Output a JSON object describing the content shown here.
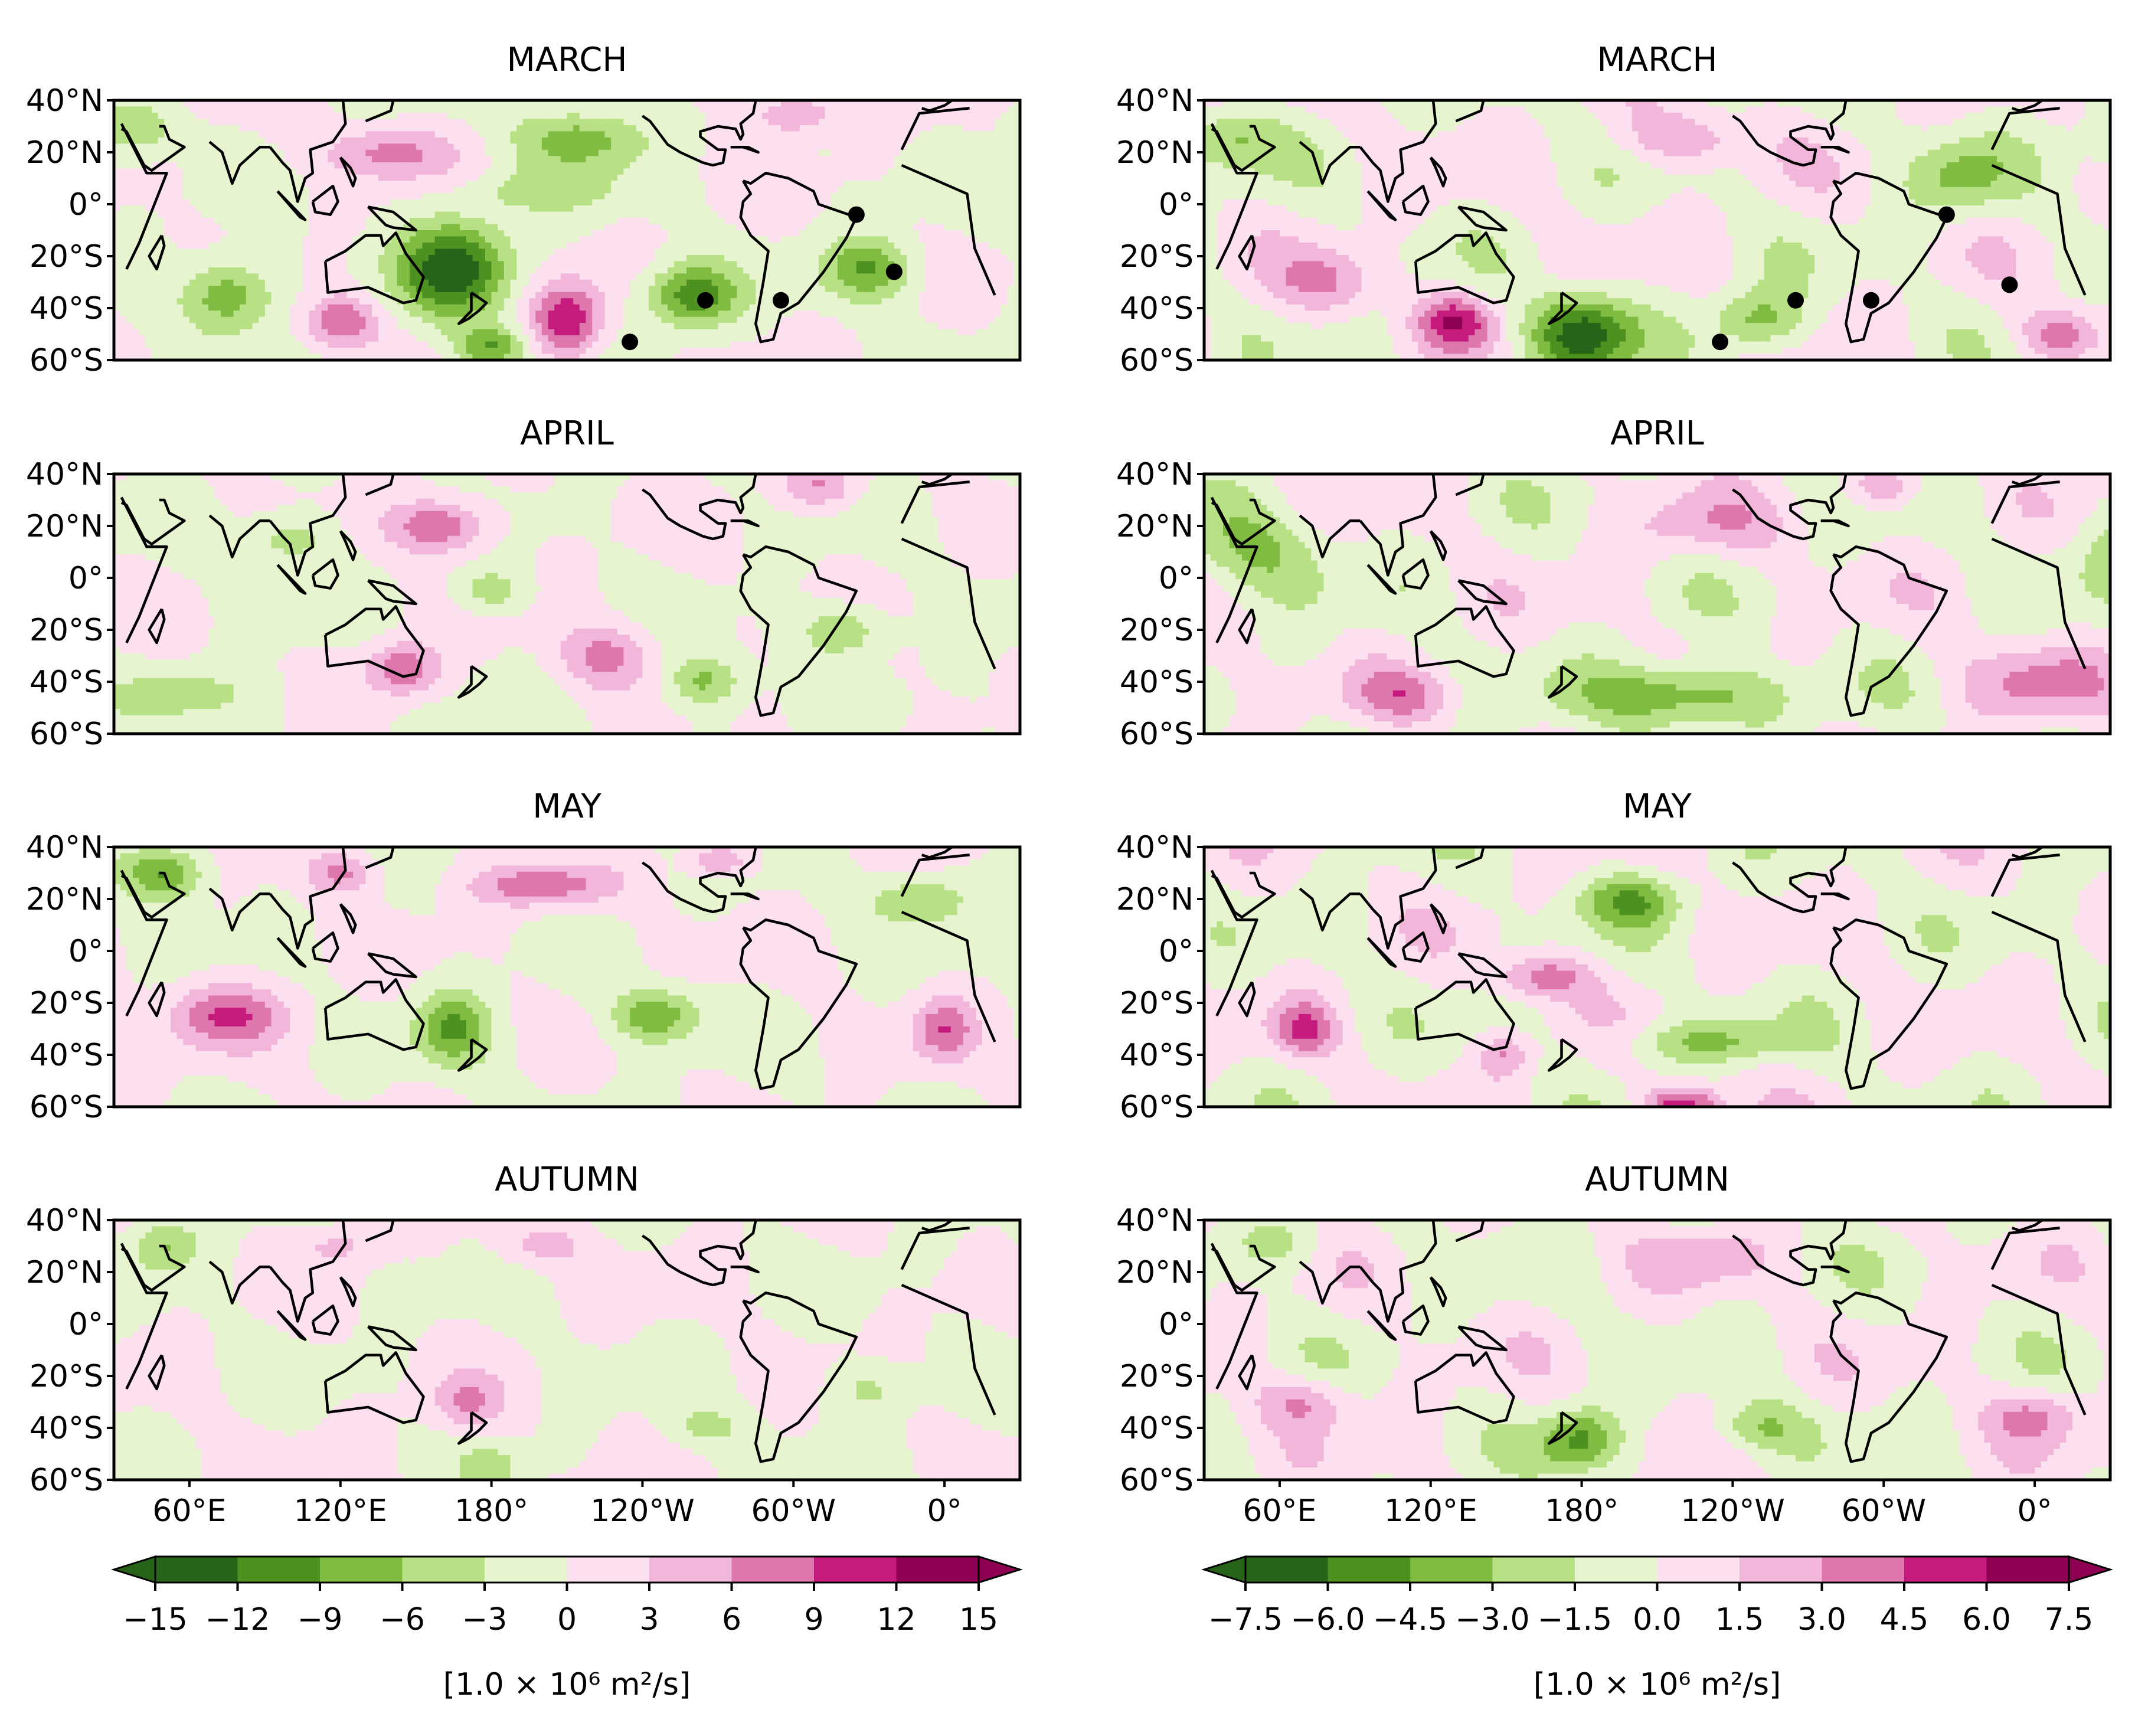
{
  "chart_data": {
    "type": "heatmap",
    "layout": "4 rows x 2 columns of global contour maps (longitude 30°E to 30°E, latitude 60°S to 40°N)",
    "row_titles": [
      "MARCH",
      "APRIL",
      "MAY",
      "AUTUMN"
    ],
    "lat_ticks": [
      "40°N",
      "20°N",
      "0°",
      "20°S",
      "40°S",
      "60°S"
    ],
    "lon_ticks": [
      "60°E",
      "120°E",
      "180°",
      "120°W",
      "60°W",
      "0°"
    ],
    "lat_range": [
      -60,
      40
    ],
    "lon_range_deg_east": [
      30,
      390
    ],
    "colormap": {
      "name": "PiYG",
      "colors": [
        "#276419",
        "#4d9221",
        "#7fbc41",
        "#b8e186",
        "#e6f5d0",
        "#fde0ef",
        "#f1b6da",
        "#de77ae",
        "#c51b7d",
        "#8e0152"
      ]
    },
    "colorbars": [
      {
        "levels": [
          -15,
          -12,
          -9,
          -6,
          -3,
          0,
          3,
          6,
          9,
          12,
          15
        ],
        "tick_labels": [
          "−15",
          "−12",
          "−9",
          "−6",
          "−3",
          "0",
          "3",
          "6",
          "9",
          "12",
          "15"
        ],
        "units": "[1.0 × 10⁶ m²/s]"
      },
      {
        "levels": [
          -7.5,
          -6.0,
          -4.5,
          -3.0,
          -1.5,
          0.0,
          1.5,
          3.0,
          4.5,
          6.0,
          7.5
        ],
        "tick_labels": [
          "−7.5",
          "−6.0",
          "−4.5",
          "−3.0",
          "−1.5",
          "0.0",
          "1.5",
          "3.0",
          "4.5",
          "6.0",
          "7.5"
        ],
        "units": "[1.0 × 10⁶ m²/s]"
      }
    ],
    "panels": [
      {
        "col": 0,
        "row": 0,
        "title": "MARCH",
        "vmax": 15,
        "blobs": [
          {
            "lon": 165,
            "lat": -25,
            "value": -14,
            "rlon": 22,
            "rlat": 18
          },
          {
            "lon": 140,
            "lat": 20,
            "value": 7,
            "rlon": 25,
            "rlat": 10
          },
          {
            "lon": 215,
            "lat": 25,
            "value": -8,
            "rlon": 25,
            "rlat": 12
          },
          {
            "lon": 210,
            "lat": -45,
            "value": 12,
            "rlon": 14,
            "rlat": 14
          },
          {
            "lon": 260,
            "lat": -35,
            "value": -11,
            "rlon": 18,
            "rlat": 12
          },
          {
            "lon": 330,
            "lat": -25,
            "value": -9,
            "rlon": 18,
            "rlat": 12
          },
          {
            "lon": 75,
            "lat": -35,
            "value": -9,
            "rlon": 18,
            "rlat": 14
          },
          {
            "lon": 120,
            "lat": -45,
            "value": 9,
            "rlon": 14,
            "rlat": 10
          },
          {
            "lon": 180,
            "lat": -55,
            "value": -9,
            "rlon": 14,
            "rlat": 8
          },
          {
            "lon": 300,
            "lat": 35,
            "value": 7,
            "rlon": 16,
            "rlat": 8
          },
          {
            "lon": 40,
            "lat": 30,
            "value": -6,
            "rlon": 14,
            "rlat": 10
          },
          {
            "lon": 200,
            "lat": 5,
            "value": -4,
            "rlon": 30,
            "rlat": 8
          }
        ],
        "stipple_points": [
          {
            "lon": 325,
            "lat": -4
          },
          {
            "lon": 340,
            "lat": -26
          },
          {
            "lon": 265,
            "lat": -37
          },
          {
            "lon": 295,
            "lat": -37
          },
          {
            "lon": 235,
            "lat": -53
          }
        ]
      },
      {
        "col": 1,
        "row": 0,
        "title": "MARCH",
        "vmax": 7.5,
        "blobs": [
          {
            "lon": 180,
            "lat": -50,
            "value": -7,
            "rlon": 20,
            "rlat": 15
          },
          {
            "lon": 130,
            "lat": -45,
            "value": 5,
            "rlon": 15,
            "rlat": 10
          },
          {
            "lon": 250,
            "lat": -45,
            "value": -4,
            "rlon": 18,
            "rlat": 12
          },
          {
            "lon": 220,
            "lat": 25,
            "value": 3,
            "rlon": 25,
            "rlat": 10
          },
          {
            "lon": 80,
            "lat": -30,
            "value": 3,
            "rlon": 20,
            "rlat": 12
          },
          {
            "lon": 40,
            "lat": 25,
            "value": -3,
            "rlon": 20,
            "rlat": 12
          },
          {
            "lon": 370,
            "lat": -50,
            "value": 4,
            "rlon": 16,
            "rlat": 10
          },
          {
            "lon": 330,
            "lat": 10,
            "value": -3,
            "rlon": 20,
            "rlat": 15
          }
        ],
        "stipple_points": [
          {
            "lon": 325,
            "lat": -4
          },
          {
            "lon": 350,
            "lat": -31
          },
          {
            "lon": 265,
            "lat": -37
          },
          {
            "lon": 295,
            "lat": -37
          },
          {
            "lon": 235,
            "lat": -53
          }
        ]
      },
      {
        "col": 0,
        "row": 1,
        "title": "APRIL",
        "vmax": 15,
        "blobs": [
          {
            "lon": 160,
            "lat": 20,
            "value": 9,
            "rlon": 20,
            "rlat": 10
          },
          {
            "lon": 145,
            "lat": -35,
            "value": 9,
            "rlon": 14,
            "rlat": 10
          },
          {
            "lon": 225,
            "lat": -30,
            "value": 7,
            "rlon": 18,
            "rlat": 12
          },
          {
            "lon": 265,
            "lat": -40,
            "value": -7,
            "rlon": 15,
            "rlat": 10
          },
          {
            "lon": 320,
            "lat": -20,
            "value": -6,
            "rlon": 18,
            "rlat": 10
          },
          {
            "lon": 100,
            "lat": 15,
            "value": -5,
            "rlon": 18,
            "rlat": 10
          },
          {
            "lon": 310,
            "lat": 35,
            "value": 6,
            "rlon": 15,
            "rlat": 8
          },
          {
            "lon": 180,
            "lat": -5,
            "value": -5,
            "rlon": 14,
            "rlat": 8
          },
          {
            "lon": 60,
            "lat": -45,
            "value": -4,
            "rlon": 30,
            "rlat": 10
          }
        ],
        "stipple_points": []
      },
      {
        "col": 1,
        "row": 1,
        "title": "APRIL",
        "vmax": 7.5,
        "blobs": [
          {
            "lon": 220,
            "lat": -45,
            "value": -5,
            "rlon": 40,
            "rlat": 12
          },
          {
            "lon": 230,
            "lat": 20,
            "value": 2,
            "rlon": 35,
            "rlat": 12
          },
          {
            "lon": 110,
            "lat": -45,
            "value": 3,
            "rlon": 20,
            "rlat": 10
          },
          {
            "lon": 360,
            "lat": -40,
            "value": 3,
            "rlon": 30,
            "rlat": 14
          },
          {
            "lon": 50,
            "lat": 10,
            "value": -3,
            "rlon": 30,
            "rlat": 18
          },
          {
            "lon": 300,
            "lat": 35,
            "value": 3,
            "rlon": 15,
            "rlat": 8
          }
        ],
        "stipple_points": []
      },
      {
        "col": 0,
        "row": 2,
        "title": "MAY",
        "vmax": 15,
        "blobs": [
          {
            "lon": 50,
            "lat": 30,
            "value": -10,
            "rlon": 16,
            "rlat": 10
          },
          {
            "lon": 75,
            "lat": -25,
            "value": 9,
            "rlon": 22,
            "rlat": 12
          },
          {
            "lon": 165,
            "lat": -30,
            "value": -9,
            "rlon": 15,
            "rlat": 14
          },
          {
            "lon": 245,
            "lat": -25,
            "value": -9,
            "rlon": 16,
            "rlat": 10
          },
          {
            "lon": 200,
            "lat": 25,
            "value": 8,
            "rlon": 28,
            "rlat": 8
          },
          {
            "lon": 120,
            "lat": 30,
            "value": 7,
            "rlon": 14,
            "rlat": 8
          },
          {
            "lon": 360,
            "lat": -30,
            "value": 8,
            "rlon": 12,
            "rlat": 12
          },
          {
            "lon": 350,
            "lat": 20,
            "value": -6,
            "rlon": 20,
            "rlat": 10
          },
          {
            "lon": 270,
            "lat": 35,
            "value": 7,
            "rlon": 12,
            "rlat": 6
          }
        ],
        "stipple_points": []
      },
      {
        "col": 1,
        "row": 2,
        "title": "MAY",
        "vmax": 7.5,
        "blobs": [
          {
            "lon": 220,
            "lat": -60,
            "value": 6,
            "rlon": 15,
            "rlat": 8
          },
          {
            "lon": 200,
            "lat": 20,
            "value": -4,
            "rlon": 20,
            "rlat": 10
          },
          {
            "lon": 165,
            "lat": -10,
            "value": 4,
            "rlon": 18,
            "rlat": 8
          },
          {
            "lon": 70,
            "lat": -30,
            "value": 4,
            "rlon": 12,
            "rlat": 10
          },
          {
            "lon": 230,
            "lat": -35,
            "value": -3,
            "rlon": 35,
            "rlat": 8
          },
          {
            "lon": 150,
            "lat": -40,
            "value": 3,
            "rlon": 10,
            "rlat": 8
          }
        ],
        "stipple_points": []
      },
      {
        "col": 0,
        "row": 3,
        "title": "AUTUMN",
        "vmax": 15,
        "blobs": [
          {
            "lon": 50,
            "lat": 30,
            "value": -6,
            "rlon": 14,
            "rlat": 10
          },
          {
            "lon": 170,
            "lat": -30,
            "value": 6,
            "rlon": 14,
            "rlat": 10
          },
          {
            "lon": 120,
            "lat": 30,
            "value": 4,
            "rlon": 14,
            "rlat": 8
          },
          {
            "lon": 200,
            "lat": 30,
            "value": 4,
            "rlon": 18,
            "rlat": 8
          },
          {
            "lon": 265,
            "lat": -40,
            "value": -4,
            "rlon": 16,
            "rlat": 8
          },
          {
            "lon": 330,
            "lat": -25,
            "value": -4,
            "rlon": 16,
            "rlat": 10
          },
          {
            "lon": 180,
            "lat": -55,
            "value": -4,
            "rlon": 12,
            "rlat": 8
          }
        ],
        "stipple_points": []
      },
      {
        "col": 1,
        "row": 3,
        "title": "AUTUMN",
        "vmax": 7.5,
        "blobs": [
          {
            "lon": 180,
            "lat": -45,
            "value": -5,
            "rlon": 16,
            "rlat": 12
          },
          {
            "lon": 70,
            "lat": -30,
            "value": 3,
            "rlon": 18,
            "rlat": 10
          },
          {
            "lon": 250,
            "lat": -40,
            "value": -3,
            "rlon": 20,
            "rlat": 10
          },
          {
            "lon": 360,
            "lat": -35,
            "value": 3,
            "rlon": 18,
            "rlat": 10
          },
          {
            "lon": 230,
            "lat": 25,
            "value": 2,
            "rlon": 25,
            "rlat": 10
          },
          {
            "lon": 60,
            "lat": 30,
            "value": -2,
            "rlon": 20,
            "rlat": 10
          }
        ],
        "stipple_points": []
      }
    ]
  },
  "coastline_points": {
    "africa": [
      [
        -17,
        21
      ],
      [
        -10,
        35
      ],
      [
        10,
        37
      ],
      [
        33,
        31
      ],
      [
        43,
        12
      ],
      [
        51,
        12
      ],
      [
        40,
        -15
      ],
      [
        35,
        -25
      ],
      [
        20,
        -35
      ],
      [
        12,
        -17
      ],
      [
        9,
        4
      ],
      [
        -17,
        15
      ]
    ],
    "madagascar": [
      [
        49,
        -12
      ],
      [
        50,
        -16
      ],
      [
        47,
        -25
      ],
      [
        44,
        -20
      ],
      [
        49,
        -12
      ]
    ],
    "india": [
      [
        68,
        24
      ],
      [
        73,
        20
      ],
      [
        77,
        8
      ],
      [
        80,
        15
      ],
      [
        88,
        22
      ],
      [
        92,
        22
      ]
    ],
    "arabia": [
      [
        33,
        29
      ],
      [
        35,
        28
      ],
      [
        42,
        15
      ],
      [
        45,
        13
      ],
      [
        58,
        22
      ],
      [
        52,
        25
      ],
      [
        50,
        30
      ],
      [
        48,
        30
      ]
    ],
    "se_asia": [
      [
        92,
        22
      ],
      [
        97,
        16
      ],
      [
        100,
        13
      ],
      [
        103,
        1
      ],
      [
        106,
        10
      ],
      [
        109,
        12
      ],
      [
        108,
        21
      ],
      [
        117,
        24
      ],
      [
        122,
        31
      ],
      [
        121,
        40
      ]
    ],
    "sumatra": [
      [
        95,
        5
      ],
      [
        106,
        -6
      ],
      [
        104,
        -5
      ],
      [
        95,
        5
      ]
    ],
    "borneo": [
      [
        109,
        1
      ],
      [
        117,
        7
      ],
      [
        119,
        1
      ],
      [
        116,
        -4
      ],
      [
        110,
        -3
      ],
      [
        109,
        1
      ]
    ],
    "new_guinea": [
      [
        131,
        -1
      ],
      [
        141,
        -3
      ],
      [
        150,
        -10
      ],
      [
        141,
        -9
      ],
      [
        138,
        -8
      ],
      [
        131,
        -1
      ]
    ],
    "philippines": [
      [
        120,
        18
      ],
      [
        122,
        14
      ],
      [
        125,
        7
      ],
      [
        126,
        10
      ],
      [
        124,
        14
      ],
      [
        120,
        18
      ]
    ],
    "japan": [
      [
        130,
        32
      ],
      [
        135,
        34
      ],
      [
        140,
        36
      ],
      [
        141,
        40
      ]
    ],
    "australia": [
      [
        114,
        -22
      ],
      [
        122,
        -18
      ],
      [
        130,
        -12
      ],
      [
        136,
        -12
      ],
      [
        137,
        -16
      ],
      [
        142,
        -11
      ],
      [
        146,
        -19
      ],
      [
        153,
        -28
      ],
      [
        150,
        -37
      ],
      [
        145,
        -38
      ],
      [
        138,
        -35
      ],
      [
        131,
        -32
      ],
      [
        115,
        -34
      ],
      [
        114,
        -22
      ]
    ],
    "new_zealand": [
      [
        172,
        -34
      ],
      [
        178,
        -38
      ],
      [
        175,
        -41
      ],
      [
        171,
        -44
      ],
      [
        167,
        -46
      ],
      [
        172,
        -41
      ],
      [
        172,
        -34
      ]
    ],
    "south_america": [
      [
        -80,
        9
      ],
      [
        -77,
        8
      ],
      [
        -71,
        12
      ],
      [
        -62,
        10
      ],
      [
        -52,
        5
      ],
      [
        -50,
        0
      ],
      [
        -35,
        -5
      ],
      [
        -39,
        -13
      ],
      [
        -48,
        -26
      ],
      [
        -58,
        -38
      ],
      [
        -65,
        -42
      ],
      [
        -68,
        -52
      ],
      [
        -73,
        -53
      ],
      [
        -75,
        -46
      ],
      [
        -72,
        -30
      ],
      [
        -70,
        -18
      ],
      [
        -77,
        -12
      ],
      [
        -81,
        -5
      ],
      [
        -80,
        1
      ],
      [
        -77,
        4
      ],
      [
        -80,
        9
      ]
    ],
    "north_america": [
      [
        -120,
        34
      ],
      [
        -117,
        32
      ],
      [
        -110,
        23
      ],
      [
        -105,
        20
      ],
      [
        -96,
        16
      ],
      [
        -92,
        15
      ],
      [
        -88,
        16
      ],
      [
        -87,
        21
      ],
      [
        -90,
        21
      ],
      [
        -97,
        26
      ],
      [
        -97,
        28
      ],
      [
        -90,
        30
      ],
      [
        -83,
        29
      ],
      [
        -81,
        25
      ],
      [
        -80,
        27
      ],
      [
        -81,
        31
      ],
      [
        -76,
        35
      ],
      [
        -75,
        40
      ]
    ],
    "cuba": [
      [
        -85,
        22
      ],
      [
        -78,
        22
      ],
      [
        -74,
        20
      ],
      [
        -80,
        22
      ],
      [
        -85,
        22
      ]
    ],
    "iberia_med": [
      [
        -9,
        37
      ],
      [
        -6,
        36
      ],
      [
        0,
        38
      ],
      [
        3,
        40
      ]
    ]
  }
}
